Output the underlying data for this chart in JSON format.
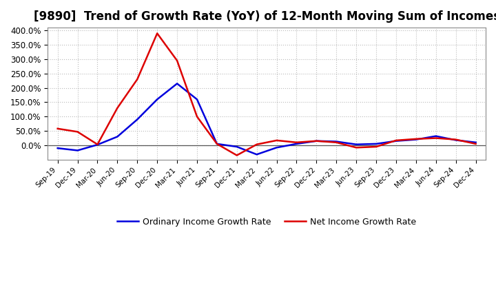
{
  "title": "[9890]  Trend of Growth Rate (YoY) of 12-Month Moving Sum of Incomes",
  "title_fontsize": 12,
  "background_color": "#ffffff",
  "grid_color": "#bbbbbb",
  "ordinary_color": "#0000dd",
  "net_color": "#dd0000",
  "ordinary_label": "Ordinary Income Growth Rate",
  "net_label": "Net Income Growth Rate",
  "x_labels": [
    "Sep-19",
    "Dec-19",
    "Mar-20",
    "Jun-20",
    "Sep-20",
    "Dec-20",
    "Mar-21",
    "Jun-21",
    "Sep-21",
    "Dec-21",
    "Mar-22",
    "Jun-22",
    "Sep-22",
    "Dec-22",
    "Mar-23",
    "Jun-23",
    "Sep-23",
    "Dec-23",
    "Mar-24",
    "Jun-24",
    "Sep-24",
    "Dec-24"
  ],
  "ordinary_income": [
    -10,
    -18,
    2,
    30,
    90,
    160,
    215,
    160,
    5,
    -5,
    -32,
    -8,
    5,
    15,
    13,
    3,
    5,
    15,
    20,
    32,
    18,
    10
  ],
  "net_income": [
    58,
    47,
    3,
    130,
    230,
    390,
    295,
    100,
    5,
    -35,
    3,
    17,
    10,
    15,
    10,
    -8,
    -5,
    17,
    22,
    25,
    20,
    5
  ],
  "ylim": [
    -50,
    410
  ],
  "yticks": [
    0,
    50,
    100,
    150,
    200,
    250,
    300,
    350,
    400
  ],
  "zero_line_color": "#555555",
  "spine_color": "#888888"
}
